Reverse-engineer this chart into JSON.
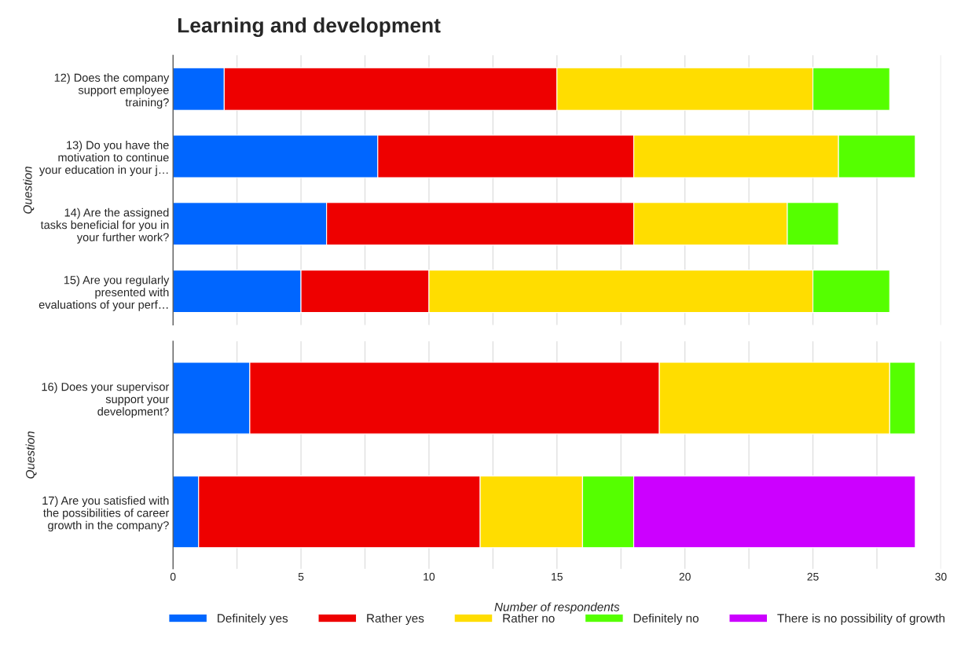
{
  "chart_data": [
    {
      "type": "bar",
      "orientation": "horizontal",
      "stacked": true,
      "title": "Learning and development",
      "ylabel": "Question",
      "categories": [
        "12) Does the company\nsupport employee\ntraining?",
        "13) Do you have the\nmotivation to continue\nyour education in your j…",
        "14) Are the assigned\ntasks beneficial for you in\nyour further work?",
        "15) Are you regularly\npresented with\nevaluations of your perf…"
      ],
      "series": [
        {
          "color": "#0066ff",
          "values": [
            2,
            8,
            6,
            5
          ]
        },
        {
          "color": "#ee0000",
          "values": [
            13,
            10,
            12,
            5
          ]
        },
        {
          "color": "#ffdd00",
          "values": [
            10,
            8,
            6,
            15
          ]
        },
        {
          "color": "#55ff00",
          "values": [
            3,
            3,
            2,
            3
          ]
        }
      ],
      "xlim": [
        0,
        30
      ],
      "xticks": [
        0,
        {
          "value": 2.5,
          "label": null
        },
        5,
        {
          "value": 7.5,
          "label": null
        },
        10,
        {
          "value": 12.5,
          "label": null
        },
        15,
        {
          "value": 17.5,
          "label": null
        },
        20,
        {
          "value": 22.5,
          "label": null
        },
        25,
        {
          "value": 27.5,
          "label": null
        },
        30
      ],
      "grid": "x",
      "tick_labels": "y"
    },
    {
      "type": "bar",
      "orientation": "horizontal",
      "stacked": true,
      "ylabel": "Question",
      "xlabel": "Number of respondents",
      "categories": [
        "16) Does your supervisor\nsupport your\ndevelopment?",
        "17) Are you satisfied with\nthe possibilities of career\ngrowth in the company?"
      ],
      "series": [
        {
          "name": "Definitely yes",
          "color": "#0066ff",
          "values": [
            3,
            1
          ]
        },
        {
          "name": "Rather yes",
          "color": "#ee0000",
          "values": [
            16,
            11
          ]
        },
        {
          "name": "Rather no",
          "color": "#ffdd00",
          "values": [
            9,
            4
          ]
        },
        {
          "name": "Definitely no",
          "color": "#55ff00",
          "values": [
            1,
            2
          ]
        },
        {
          "name": "There is no possibility of growth",
          "color": "#cc00ff",
          "values": [
            null,
            11
          ]
        }
      ],
      "xlim": [
        0,
        30
      ],
      "xticks": [
        0,
        {
          "value": 2.5,
          "label": null
        },
        5,
        {
          "value": 7.5,
          "label": null
        },
        10,
        {
          "value": 12.5,
          "label": null
        },
        15,
        {
          "value": 17.5,
          "label": null
        },
        20,
        {
          "value": 22.5,
          "label": null
        },
        25,
        {
          "value": 27.5,
          "label": null
        },
        30
      ],
      "grid": "x",
      "legend": "bottom"
    }
  ]
}
